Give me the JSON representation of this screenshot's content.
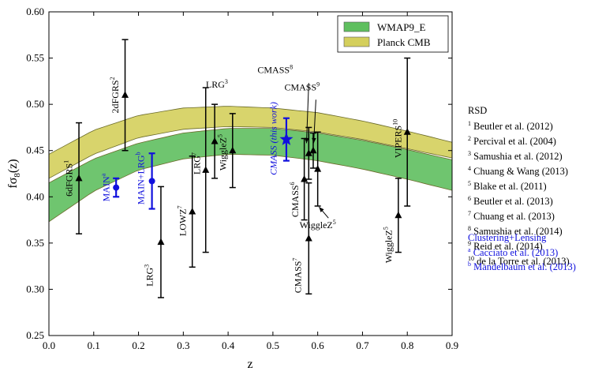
{
  "chart_data": {
    "type": "scatter",
    "xlabel": "z",
    "ylabel": "fσ8(z)",
    "xlim": [
      0.0,
      0.9
    ],
    "ylim": [
      0.25,
      0.6
    ],
    "xticks": [
      "0.0",
      "0.1",
      "0.2",
      "0.3",
      "0.4",
      "0.5",
      "0.6",
      "0.7",
      "0.8",
      "0.9"
    ],
    "yticks": [
      "0.25",
      "0.30",
      "0.35",
      "0.40",
      "0.45",
      "0.50",
      "0.55",
      "0.60"
    ],
    "bands": [
      {
        "name": "WMAP9_E",
        "color": "#5fbf5f",
        "z": [
          0.0,
          0.1,
          0.2,
          0.3,
          0.4,
          0.5,
          0.6,
          0.7,
          0.8,
          0.9
        ],
        "lower": [
          0.373,
          0.406,
          0.429,
          0.441,
          0.446,
          0.445,
          0.439,
          0.43,
          0.419,
          0.407
        ],
        "upper": [
          0.415,
          0.441,
          0.458,
          0.469,
          0.474,
          0.474,
          0.469,
          0.461,
          0.451,
          0.44
        ]
      },
      {
        "name": "Planck CMB",
        "color": "#d4cf5c",
        "z": [
          0.0,
          0.1,
          0.2,
          0.3,
          0.4,
          0.5,
          0.6,
          0.7,
          0.8,
          0.9
        ],
        "lower": [
          0.42,
          0.446,
          0.464,
          0.473,
          0.476,
          0.475,
          0.47,
          0.462,
          0.452,
          0.442
        ],
        "upper": [
          0.446,
          0.472,
          0.488,
          0.496,
          0.498,
          0.496,
          0.491,
          0.482,
          0.471,
          0.459
        ]
      }
    ],
    "points": [
      {
        "label": "6dFGRS",
        "sup": "1",
        "z": 0.067,
        "y": 0.42,
        "err": 0.06,
        "color": "#000",
        "marker": "triangle",
        "rot": true,
        "lx": 0.052,
        "ly": 0.42
      },
      {
        "label": "2dFGRS",
        "sup": "2",
        "z": 0.17,
        "y": 0.51,
        "err": 0.06,
        "color": "#000",
        "marker": "triangle",
        "rot": true,
        "lx": 0.155,
        "ly": 0.51
      },
      {
        "label": "LRG",
        "sup": "3",
        "z": 0.25,
        "y": 0.351,
        "err": 0.06,
        "color": "#000",
        "marker": "triangle",
        "rot": true,
        "lx": 0.232,
        "ly": 0.315
      },
      {
        "label": "LOWZ",
        "sup": "7",
        "z": 0.32,
        "y": 0.384,
        "err": 0.06,
        "color": "#000",
        "marker": "triangle",
        "rot": true,
        "lx": 0.306,
        "ly": 0.374
      },
      {
        "label": "LRG",
        "sup": "7",
        "z": 0.35,
        "y": 0.429,
        "err": 0.089,
        "color": "#000",
        "marker": "triangle",
        "rot": true,
        "lx": 0.337,
        "ly": 0.436
      },
      {
        "label": "LRG",
        "sup": "3",
        "z": 0.37,
        "y": 0.46,
        "err": 0.04,
        "color": "#000",
        "marker": "triangle",
        "rot": false,
        "lx": 0.375,
        "ly": 0.518
      },
      {
        "label": "WiggleZ",
        "sup": "5",
        "z": 0.41,
        "y": 0.45,
        "err": 0.04,
        "color": "#000",
        "marker": "triangle",
        "rot": true,
        "lx": 0.395,
        "ly": 0.448
      },
      {
        "label": "CMASS",
        "sup": "6",
        "z": 0.57,
        "y": 0.419,
        "err": 0.044,
        "color": "#000",
        "marker": "triangle",
        "rot": true,
        "lx": 0.557,
        "ly": 0.397
      },
      {
        "label": "CMASS",
        "sup": "7",
        "z": 0.58,
        "y": 0.355,
        "err": 0.06,
        "color": "#000",
        "marker": "triangle",
        "rot": true,
        "lx": 0.563,
        "ly": 0.315
      },
      {
        "label": "CMASS",
        "sup": "8",
        "z": 0.58,
        "y": 0.447,
        "err": 0.028,
        "color": "#000",
        "marker": "triangle",
        "rot": false,
        "lx": 0.505,
        "ly": 0.534
      },
      {
        "label": "CMASS",
        "sup": "9",
        "z": 0.59,
        "y": 0.45,
        "err": 0.019,
        "color": "#000",
        "marker": "triangle",
        "rot": false,
        "lx": 0.565,
        "ly": 0.515
      },
      {
        "label": "WiggleZ",
        "sup": "5",
        "z": 0.6,
        "y": 0.43,
        "err": 0.04,
        "color": "#000",
        "marker": "triangle",
        "rot": false,
        "lx": 0.6,
        "ly": 0.366
      },
      {
        "label": "WiggleZ",
        "sup": "5",
        "z": 0.78,
        "y": 0.38,
        "err": 0.04,
        "color": "#000",
        "marker": "triangle",
        "rot": true,
        "lx": 0.765,
        "ly": 0.348
      },
      {
        "label": "VIPERS",
        "sup": "10",
        "z": 0.8,
        "y": 0.47,
        "err": 0.08,
        "color": "#000",
        "marker": "triangle",
        "rot": true,
        "lx": 0.786,
        "ly": 0.463
      },
      {
        "label": "MAIN",
        "sup": "a",
        "z": 0.15,
        "y": 0.41,
        "err": 0.01,
        "color": "#1010dd",
        "marker": "circle",
        "rot": true,
        "lx": 0.135,
        "ly": 0.41
      },
      {
        "label": "MAIN+LRG",
        "sup": "b",
        "z": 0.23,
        "y": 0.417,
        "err": 0.03,
        "color": "#1010dd",
        "marker": "circle",
        "rot": true,
        "lx": 0.212,
        "ly": 0.42
      },
      {
        "label": "CMASS (this work)",
        "sup": "",
        "z": 0.53,
        "y": 0.462,
        "err": 0.023,
        "color": "#1010dd",
        "marker": "star",
        "rot": true,
        "lx": 0.508,
        "ly": 0.463
      }
    ],
    "annotations": [
      {
        "from": [
          0.58,
          0.523
        ],
        "to": [
          0.575,
          0.458
        ]
      },
      {
        "from": [
          0.596,
          0.505
        ],
        "to": [
          0.591,
          0.458
        ]
      },
      {
        "from": [
          0.624,
          0.377
        ],
        "to": [
          0.603,
          0.389
        ]
      }
    ],
    "legend": {
      "position": "top-right",
      "entries": [
        "WMAP9_E",
        "Planck CMB"
      ]
    }
  },
  "references": {
    "rsd_title": "RSD",
    "rsd": [
      {
        "sup": "1",
        "text": "Beutler et al. (2012)"
      },
      {
        "sup": "2",
        "text": "Percival et al. (2004)"
      },
      {
        "sup": "3",
        "text": "Samushia et al. (2012)"
      },
      {
        "sup": "4",
        "text": "Chuang & Wang (2013)"
      },
      {
        "sup": "5",
        "text": "Blake et al. (2011)"
      },
      {
        "sup": "6",
        "text": "Beutler et al. (2013)"
      },
      {
        "sup": "7",
        "text": "Chuang et al. (2013)"
      },
      {
        "sup": "8",
        "text": "Samushia et al. (2014)"
      },
      {
        "sup": "9",
        "text": "Reid et al. (2014)"
      },
      {
        "sup": "10",
        "text": "de la Torre et al. (2013)"
      }
    ],
    "lensing_title": "Clustering+Lensing",
    "lensing": [
      {
        "sup": "a",
        "text": "Cacciato et al. (2013)"
      },
      {
        "sup": "b",
        "text": "Mandelbaum et al. (2013)"
      }
    ]
  }
}
